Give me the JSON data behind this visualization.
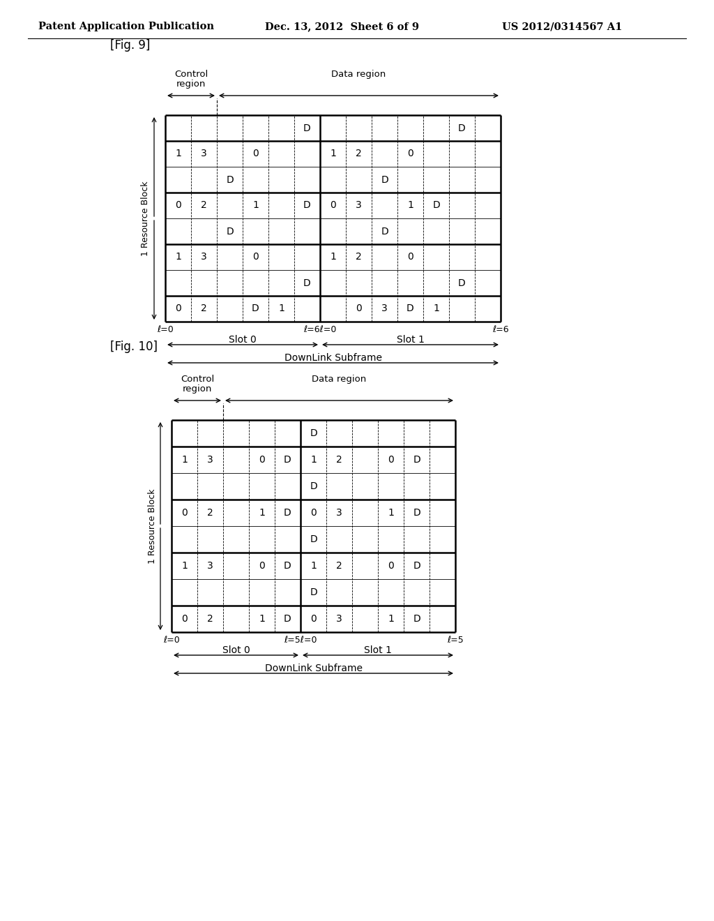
{
  "header_left": "Patent Application Publication",
  "header_mid": "Dec. 13, 2012  Sheet 6 of 9",
  "header_right": "US 2012/0314567 A1",
  "fig9_label": "[Fig. 9]",
  "fig10_label": "[Fig. 10]",
  "fig9": {
    "num_cols": 13,
    "num_rows": 8,
    "control_cols": 2,
    "slot_split_col": 6,
    "tick_left": "ℓ=0",
    "tick_mid": "ℓ=6ℓ=0",
    "tick_right": "ℓ=6",
    "slot0_label": "Slot 0",
    "slot1_label": "Slot 1",
    "subframe_label": "DownLink Subframe",
    "control_region_label1": "Control",
    "control_region_label2": "region",
    "data_region_label": "Data region",
    "resource_block_label": "1 Resource Block",
    "cells": [
      [
        0,
        5,
        "D"
      ],
      [
        0,
        11,
        "D"
      ],
      [
        1,
        0,
        "1"
      ],
      [
        1,
        1,
        "3"
      ],
      [
        1,
        3,
        "0"
      ],
      [
        1,
        6,
        "1"
      ],
      [
        1,
        7,
        "2"
      ],
      [
        1,
        9,
        "0"
      ],
      [
        2,
        2,
        "D"
      ],
      [
        2,
        8,
        "D"
      ],
      [
        3,
        0,
        "0"
      ],
      [
        3,
        1,
        "2"
      ],
      [
        3,
        3,
        "1"
      ],
      [
        3,
        5,
        "D"
      ],
      [
        3,
        6,
        "0"
      ],
      [
        3,
        7,
        "3"
      ],
      [
        3,
        9,
        "1"
      ],
      [
        3,
        10,
        "D"
      ],
      [
        4,
        2,
        "D"
      ],
      [
        4,
        8,
        "D"
      ],
      [
        5,
        0,
        "1"
      ],
      [
        5,
        1,
        "3"
      ],
      [
        5,
        3,
        "0"
      ],
      [
        5,
        6,
        "1"
      ],
      [
        5,
        7,
        "2"
      ],
      [
        5,
        9,
        "0"
      ],
      [
        6,
        5,
        "D"
      ],
      [
        6,
        11,
        "D"
      ],
      [
        7,
        0,
        "0"
      ],
      [
        7,
        1,
        "2"
      ],
      [
        7,
        3,
        "D"
      ],
      [
        7,
        4,
        "1"
      ],
      [
        7,
        7,
        "0"
      ],
      [
        7,
        8,
        "3"
      ],
      [
        7,
        9,
        "D"
      ],
      [
        7,
        10,
        "1"
      ]
    ],
    "thick_rows": [
      0,
      2,
      4,
      6,
      7
    ],
    "thick_cols": [
      5
    ]
  },
  "fig10": {
    "num_cols": 11,
    "num_rows": 8,
    "control_cols": 2,
    "slot_split_col": 5,
    "tick_left": "ℓ=0",
    "tick_mid": "ℓ=5ℓ=0",
    "tick_right": "ℓ=5",
    "slot0_label": "Slot 0",
    "slot1_label": "Slot 1",
    "subframe_label": "DownLink Subframe",
    "control_region_label1": "Control",
    "control_region_label2": "region",
    "data_region_label": "Data region",
    "resource_block_label": "1 Resource Block",
    "cells": [
      [
        0,
        5,
        "D"
      ],
      [
        1,
        0,
        "1"
      ],
      [
        1,
        1,
        "3"
      ],
      [
        1,
        3,
        "0"
      ],
      [
        1,
        4,
        "D"
      ],
      [
        1,
        5,
        "1"
      ],
      [
        1,
        6,
        "2"
      ],
      [
        1,
        8,
        "0"
      ],
      [
        1,
        9,
        "D"
      ],
      [
        2,
        5,
        "D"
      ],
      [
        3,
        0,
        "0"
      ],
      [
        3,
        1,
        "2"
      ],
      [
        3,
        3,
        "1"
      ],
      [
        3,
        4,
        "D"
      ],
      [
        3,
        5,
        "0"
      ],
      [
        3,
        6,
        "3"
      ],
      [
        3,
        8,
        "1"
      ],
      [
        3,
        9,
        "D"
      ],
      [
        4,
        5,
        "D"
      ],
      [
        5,
        0,
        "1"
      ],
      [
        5,
        1,
        "3"
      ],
      [
        5,
        3,
        "0"
      ],
      [
        5,
        4,
        "D"
      ],
      [
        5,
        5,
        "1"
      ],
      [
        5,
        6,
        "2"
      ],
      [
        5,
        8,
        "0"
      ],
      [
        5,
        9,
        "D"
      ],
      [
        6,
        5,
        "D"
      ],
      [
        7,
        0,
        "0"
      ],
      [
        7,
        1,
        "2"
      ],
      [
        7,
        3,
        "1"
      ],
      [
        7,
        4,
        "D"
      ],
      [
        7,
        5,
        "0"
      ],
      [
        7,
        6,
        "3"
      ],
      [
        7,
        8,
        "1"
      ],
      [
        7,
        9,
        "D"
      ]
    ],
    "thick_rows": [
      0,
      2,
      4,
      6,
      7
    ],
    "thick_cols": [
      4
    ]
  }
}
